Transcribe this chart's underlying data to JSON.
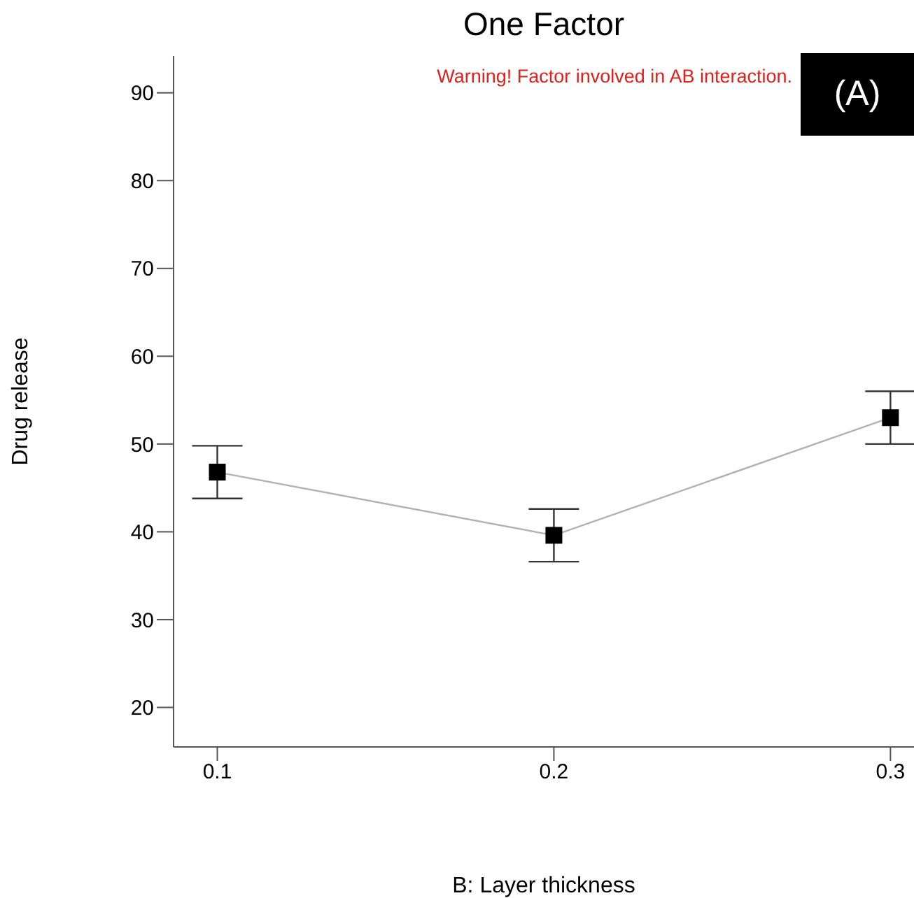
{
  "chart_data": {
    "type": "line",
    "title": "One Factor",
    "xlabel": "B: Layer thickness",
    "ylabel": "Drug release",
    "annotations": [
      "Warning! Factor involved in AB interaction.",
      "(A)"
    ],
    "x": [
      0.1,
      0.2,
      0.3
    ],
    "series": [
      {
        "color": "#000000",
        "values": [
          46.8,
          39.6,
          53.0
        ],
        "errors": [
          3,
          3,
          3
        ]
      }
    ],
    "xlim": [
      0.087,
      0.307
    ],
    "xticks": [
      0.1,
      0.2,
      0.3
    ],
    "ylim": [
      15.5,
      94.2
    ],
    "yticks": [
      20,
      30,
      40,
      50,
      60,
      70,
      80,
      90
    ],
    "marker": "square",
    "line_style": "solid",
    "grid": false,
    "legend": false
  }
}
